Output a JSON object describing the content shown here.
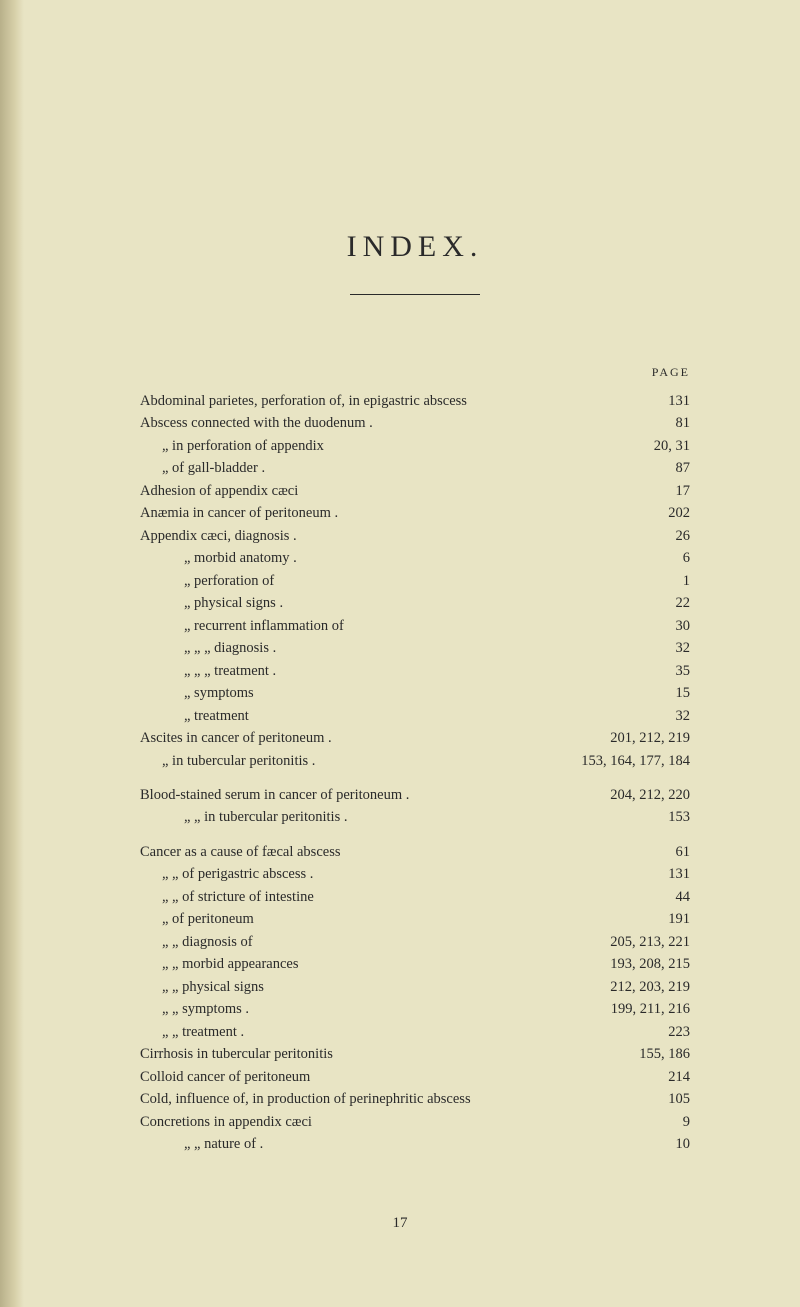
{
  "title": "INDEX.",
  "page_label": "PAGE",
  "footer": "17",
  "entries": [
    {
      "indent": 0,
      "text": "Abdominal parietes, perforation of, in epigastric abscess",
      "page": "131",
      "dots": 1
    },
    {
      "indent": 0,
      "text": "Abscess connected with the duodenum .",
      "page": "81",
      "dots": 3
    },
    {
      "indent": 1,
      "text": "„     in perforation of appendix",
      "page": "20, 31",
      "dots": 2
    },
    {
      "indent": 1,
      "text": "„     of gall-bladder    .",
      "page": "87",
      "dots": 4
    },
    {
      "indent": 0,
      "text": "Adhesion of appendix cæci",
      "page": "17",
      "dots": 4
    },
    {
      "indent": 0,
      "text": "Anæmia in cancer of peritoneum .",
      "page": "202",
      "dots": 3
    },
    {
      "indent": 0,
      "text": "Appendix cæci, diagnosis .",
      "page": "26",
      "dots": 4
    },
    {
      "indent": 2,
      "text": "„          morbid anatomy .",
      "page": "6",
      "dots": 3
    },
    {
      "indent": 2,
      "text": "„          perforation of",
      "page": "1",
      "dots": 4
    },
    {
      "indent": 2,
      "text": "„          physical signs    .",
      "page": "22",
      "dots": 3
    },
    {
      "indent": 2,
      "text": "„          recurrent inflammation of",
      "page": "30",
      "dots": 2
    },
    {
      "indent": 2,
      "text": "„               „               „        diagnosis  .",
      "page": "32",
      "dots": 1
    },
    {
      "indent": 2,
      "text": "„               „               „        treatment .",
      "page": "35",
      "dots": 1
    },
    {
      "indent": 2,
      "text": "„          symptoms",
      "page": "15",
      "dots": 4
    },
    {
      "indent": 2,
      "text": "„          treatment",
      "page": "32",
      "dots": 4
    },
    {
      "indent": 0,
      "text": "Ascites in cancer of peritoneum .",
      "page": "201, 212, 219",
      "dots": 1
    },
    {
      "indent": 1,
      "text": "„     in tubercular peritonitis .",
      "page": "153, 164, 177, 184",
      "dots": 1
    },
    {
      "indent": 0,
      "text": "Blood-stained serum in cancer of peritoneum   .",
      "page": "204, 212, 220",
      "dots": 1,
      "spaceBefore": true
    },
    {
      "indent": 2,
      "text": "„              „     in tubercular peritonitis .",
      "page": "153",
      "dots": 2
    },
    {
      "indent": 0,
      "text": "Cancer as a cause of fæcal abscess",
      "page": "61",
      "dots": 3,
      "spaceBefore": true
    },
    {
      "indent": 1,
      "text": "„        „      of perigastric abscess .",
      "page": "131",
      "dots": 2
    },
    {
      "indent": 1,
      "text": "„        „      of stricture of intestine",
      "page": "44",
      "dots": 2
    },
    {
      "indent": 1,
      "text": "„     of peritoneum",
      "page": "191",
      "dots": 4
    },
    {
      "indent": 1,
      "text": "„           „        diagnosis of",
      "page": "205, 213, 221",
      "dots": 1
    },
    {
      "indent": 1,
      "text": "„           „        morbid appearances",
      "page": "193, 208, 215",
      "dots": 1
    },
    {
      "indent": 1,
      "text": "„           „        physical signs",
      "page": "212, 203, 219",
      "dots": 1
    },
    {
      "indent": 1,
      "text": "„           „        symptoms .",
      "page": "199, 211, 216",
      "dots": 1
    },
    {
      "indent": 1,
      "text": "„           „        treatment .",
      "page": "223",
      "dots": 3
    },
    {
      "indent": 0,
      "text": "Cirrhosis in tubercular peritonitis",
      "page": "155, 186",
      "dots": 2
    },
    {
      "indent": 0,
      "text": "Colloid cancer of peritoneum",
      "page": "214",
      "dots": 4
    },
    {
      "indent": 0,
      "text": "Cold, influence of, in production of perinephritic abscess",
      "page": "105",
      "dots": 1
    },
    {
      "indent": 0,
      "text": "Concretions in appendix cæci",
      "page": "9",
      "dots": 4
    },
    {
      "indent": 2,
      "text": "„                „           nature of .",
      "page": "10",
      "dots": 2
    }
  ]
}
